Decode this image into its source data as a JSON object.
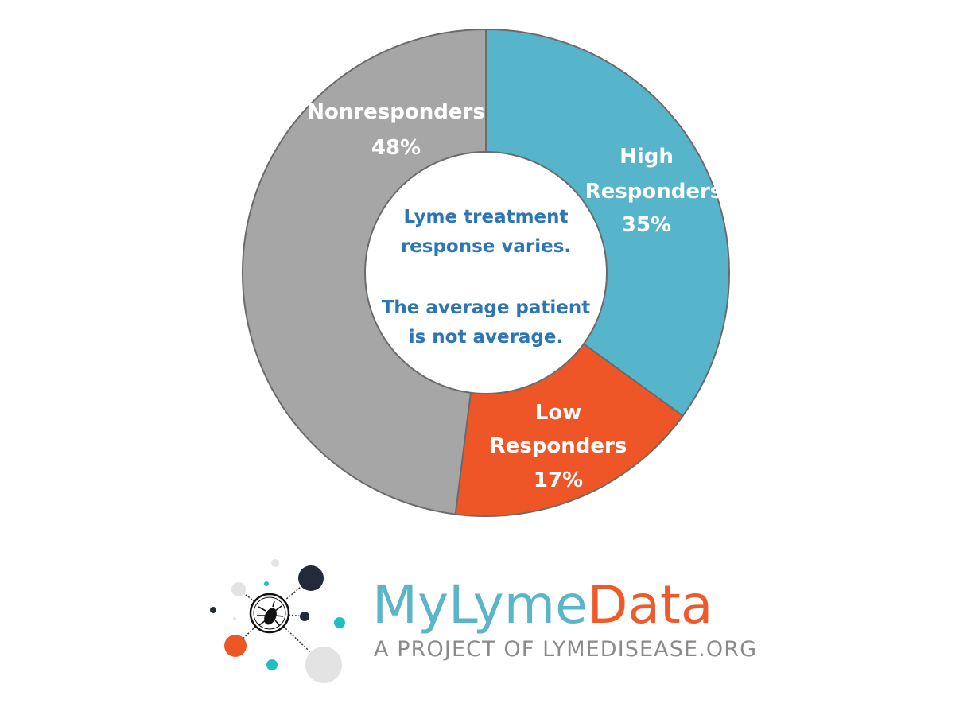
{
  "chart_data": {
    "type": "pie",
    "donut": true,
    "categories": [
      "High Responders",
      "Low Responders",
      "Nonresponders"
    ],
    "values": [
      35,
      17,
      48
    ],
    "unit": "%",
    "colors": [
      "#56b4cb",
      "#ef5627",
      "#a6a6a6"
    ],
    "labels": [
      {
        "lines": [
          "High",
          "Responders",
          "35%"
        ]
      },
      {
        "lines": [
          "Low",
          "Responders",
          "17%"
        ]
      },
      {
        "lines": [
          "Nonresponders",
          "48%"
        ]
      }
    ],
    "center_text": [
      "Lyme treatment",
      "response varies.",
      "The average patient",
      "is not average."
    ],
    "center_color": "#2e75b6"
  },
  "logo": {
    "name_part1": "MyLyme",
    "name_part2": "Data",
    "tagline": "A PROJECT OF LYMEDISEASE.ORG",
    "color1": "#5ab5c8",
    "color2": "#ef5a2a",
    "icon": "tick-icon"
  }
}
